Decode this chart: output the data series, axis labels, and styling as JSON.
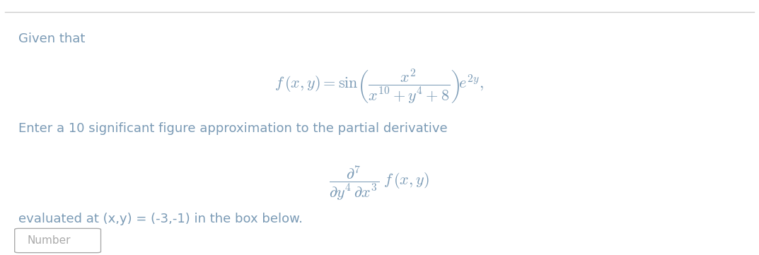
{
  "background_color": "#ffffff",
  "top_line_color": "#cccccc",
  "text_color": "#7a9ab5",
  "given_that_text": "Given that",
  "enter_text": "Enter a 10 significant figure approximation to the partial derivative",
  "evaluated_text": "evaluated at (x,y) = (-3,-1) in the box below.",
  "number_placeholder": "Number",
  "fig_width": 10.73,
  "fig_height": 3.61,
  "dpi": 100
}
